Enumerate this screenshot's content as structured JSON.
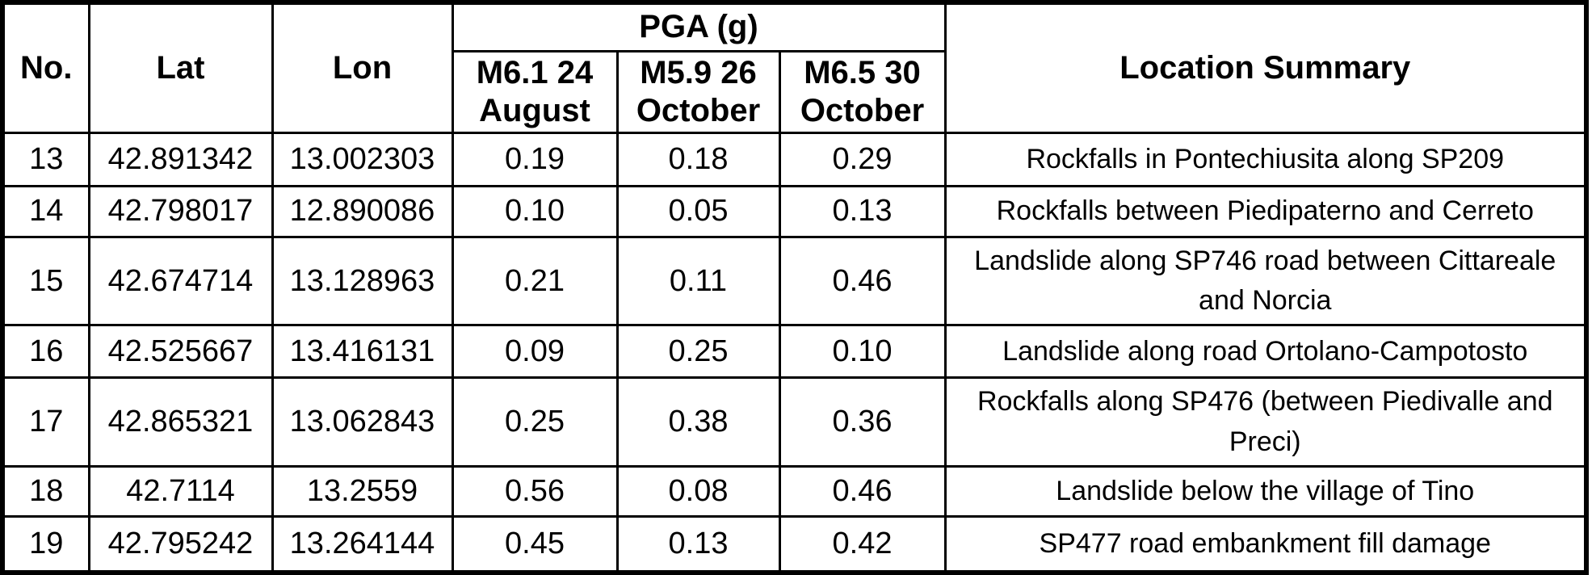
{
  "table": {
    "headers": {
      "no": "No.",
      "lat": "Lat",
      "lon": "Lon",
      "pga_group": "PGA (g)",
      "pga_columns": {
        "aug24": "M6.1 24 August",
        "oct26": "M5.9 26 October",
        "oct30": "M6.5 30 October"
      },
      "location": "Location Summary"
    },
    "rows": [
      {
        "no": "13",
        "lat": "42.891342",
        "lon": "13.002303",
        "pga_aug24": "0.19",
        "pga_oct26": "0.18",
        "pga_oct30": "0.29",
        "location": "Rockfalls in Pontechiusita along SP209"
      },
      {
        "no": "14",
        "lat": "42.798017",
        "lon": "12.890086",
        "pga_aug24": "0.10",
        "pga_oct26": "0.05",
        "pga_oct30": "0.13",
        "location": "Rockfalls between Piedipaterno and Cerreto"
      },
      {
        "no": "15",
        "lat": "42.674714",
        "lon": "13.128963",
        "pga_aug24": "0.21",
        "pga_oct26": "0.11",
        "pga_oct30": "0.46",
        "location": "Landslide along SP746 road between Cittareale and Norcia"
      },
      {
        "no": "16",
        "lat": "42.525667",
        "lon": "13.416131",
        "pga_aug24": "0.09",
        "pga_oct26": "0.25",
        "pga_oct30": "0.10",
        "location": "Landslide along road Ortolano-Campotosto"
      },
      {
        "no": "17",
        "lat": "42.865321",
        "lon": "13.062843",
        "pga_aug24": "0.25",
        "pga_oct26": "0.38",
        "pga_oct30": "0.36",
        "location": "Rockfalls along SP476 (between Piedivalle and Preci)"
      },
      {
        "no": "18",
        "lat": "42.7114",
        "lon": "13.2559",
        "pga_aug24": "0.56",
        "pga_oct26": "0.08",
        "pga_oct30": "0.46",
        "location": "Landslide below the village of Tino"
      },
      {
        "no": "19",
        "lat": "42.795242",
        "lon": "13.264144",
        "pga_aug24": "0.45",
        "pga_oct26": "0.13",
        "pga_oct30": "0.42",
        "location": "SP477 road embankment fill damage"
      }
    ]
  }
}
